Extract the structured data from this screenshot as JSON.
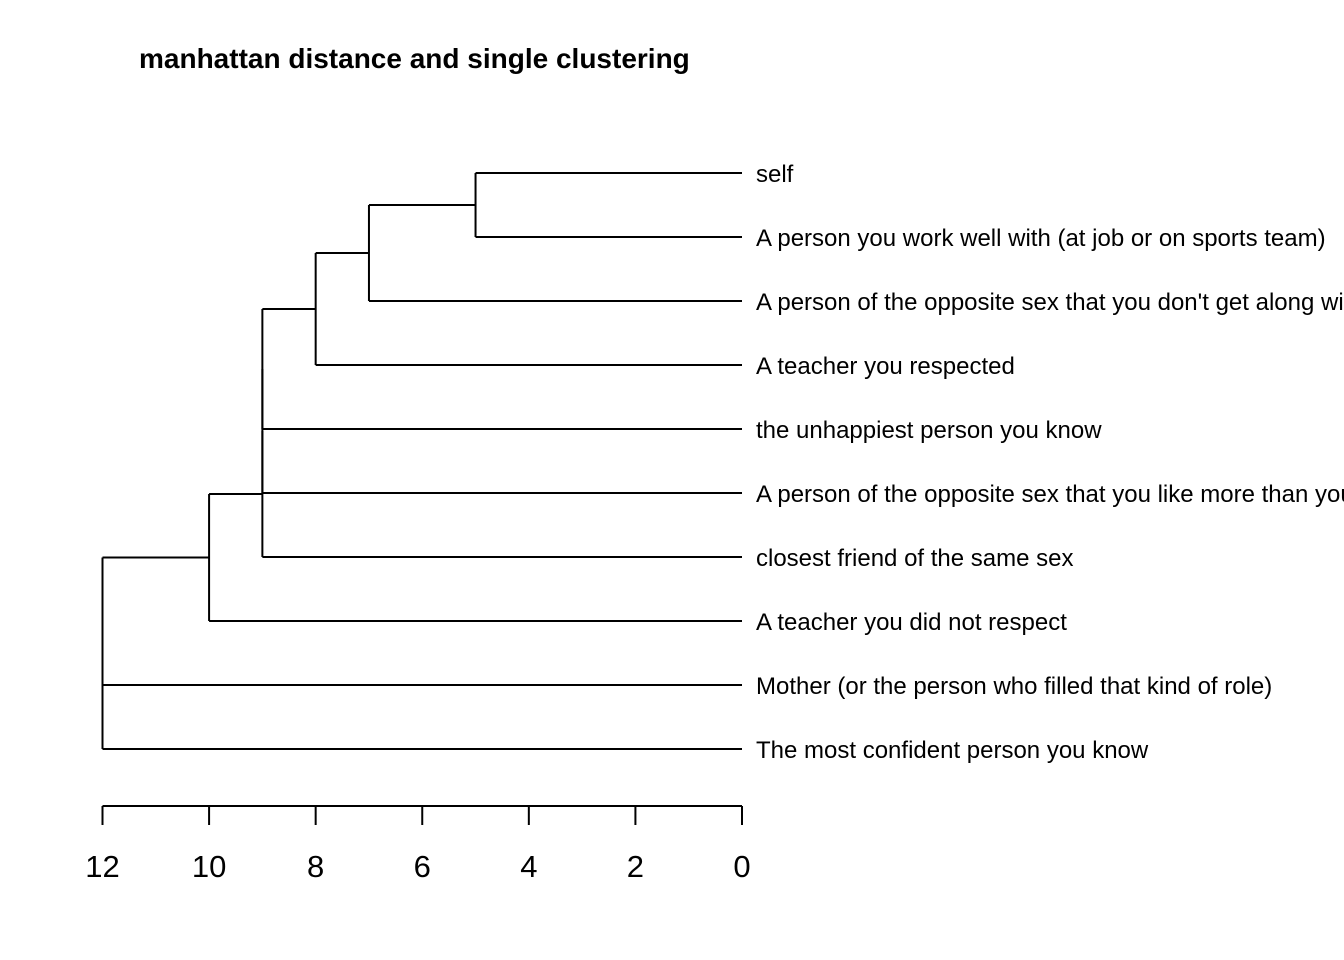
{
  "chart_data": {
    "type": "dendrogram",
    "title": "manhattan distance and single clustering",
    "orientation": "horizontal",
    "xlim": [
      12,
      0
    ],
    "ticks": [
      12,
      10,
      8,
      6,
      4,
      2,
      0
    ],
    "tick_labels": [
      "12",
      "10",
      "8",
      "6",
      "4",
      "2",
      "0"
    ],
    "leaves": [
      "self",
      "A person you work well with (at job or on sports team)",
      "A person of the opposite sex that you don't get along with",
      "A teacher you respected",
      "the unhappiest person you know",
      "A person of the opposite sex that you like more than you",
      "closest friend of the same sex",
      "A teacher you did not respect",
      "Mother (or the person who filled that kind of role)",
      "The most confident person you know"
    ],
    "merges": [
      {
        "children": [
          "leaf:0",
          "leaf:1"
        ],
        "height": 5
      },
      {
        "children": [
          "merge:0",
          "leaf:2"
        ],
        "height": 7
      },
      {
        "children": [
          "merge:1",
          "leaf:3"
        ],
        "height": 8
      },
      {
        "children": [
          "merge:2",
          "leaf:4"
        ],
        "height": 9
      },
      {
        "children": [
          "merge:3",
          "leaf:5"
        ],
        "height": 9
      },
      {
        "children": [
          "merge:4",
          "leaf:6"
        ],
        "height": 9
      },
      {
        "children": [
          "merge:5",
          "leaf:7"
        ],
        "height": 10
      },
      {
        "children": [
          "merge:6",
          "leaf:8"
        ],
        "height": 12
      },
      {
        "children": [
          "merge:7",
          "leaf:9"
        ],
        "height": 12
      }
    ]
  }
}
